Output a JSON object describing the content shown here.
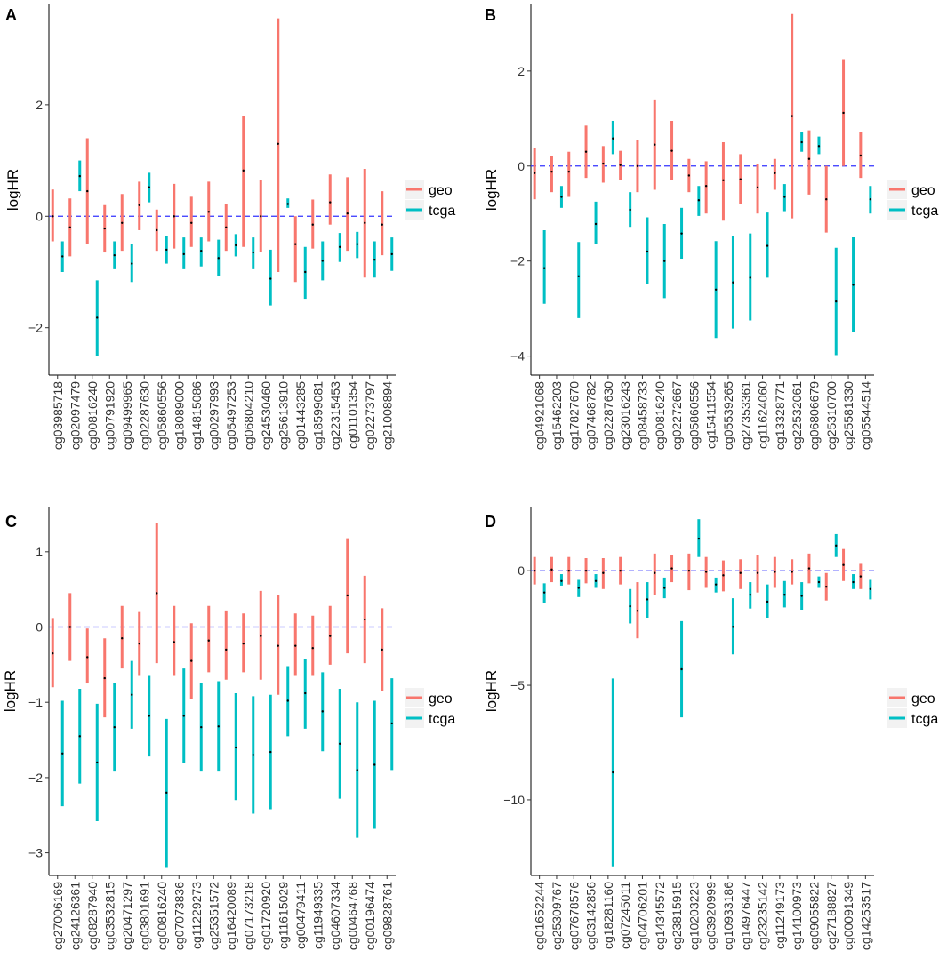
{
  "colors": {
    "geo": "#F8766D",
    "tcga": "#00BFC4",
    "reference": "#3333FF",
    "axis": "#000000"
  },
  "chart_data": [
    {
      "panel_label": "A",
      "type": "errorbar",
      "title": "",
      "xlabel": "",
      "ylabel": "logHR",
      "ylim": [
        -2.85,
        3.8
      ],
      "yticks": [
        -2,
        0,
        2
      ],
      "reference_line": 0,
      "legend": [
        "geo",
        "tcga"
      ],
      "legend_position": "right",
      "categories": [
        "cg03985718",
        "cg02097479",
        "cg00816240",
        "cg00791920",
        "cg09499965",
        "cg02287630",
        "cg05860556",
        "cg18089000",
        "cg14815086",
        "cg00297993",
        "cg05497253",
        "cg06804210",
        "cg24530460",
        "cg25613910",
        "cg01443285",
        "cg18599081",
        "cg22315453",
        "cg01101354",
        "cg02273797",
        "cg21008894"
      ],
      "series": [
        {
          "name": "geo",
          "low": [
            -0.45,
            -0.72,
            -0.5,
            -0.65,
            -0.62,
            -0.25,
            -0.62,
            -0.58,
            -0.55,
            -0.45,
            -0.62,
            -0.55,
            -0.65,
            -1.0,
            -1.18,
            -0.58,
            -0.15,
            -0.62,
            -1.1,
            -0.7
          ],
          "high": [
            0.48,
            0.32,
            1.4,
            0.2,
            0.4,
            0.62,
            0.12,
            0.58,
            0.35,
            0.62,
            0.22,
            1.8,
            0.65,
            3.55,
            0.0,
            0.3,
            0.75,
            0.7,
            0.85,
            0.45
          ],
          "est": [
            0.0,
            -0.2,
            0.45,
            -0.22,
            -0.12,
            0.2,
            -0.25,
            0.0,
            -0.12,
            0.08,
            -0.2,
            0.82,
            0.0,
            1.3,
            -0.5,
            -0.15,
            0.25,
            0.05,
            -0.12,
            -0.15
          ]
        },
        {
          "name": "tcga",
          "low": [
            -1.0,
            0.45,
            -2.5,
            -0.95,
            -1.18,
            0.25,
            -0.85,
            -0.95,
            -0.9,
            -1.08,
            -0.72,
            -0.95,
            -1.6,
            0.15,
            -1.48,
            -1.15,
            -0.82,
            -0.75,
            -1.1,
            -0.98
          ],
          "high": [
            -0.45,
            1.0,
            -1.15,
            -0.45,
            -0.5,
            0.78,
            -0.35,
            -0.38,
            -0.38,
            -0.42,
            -0.32,
            -0.38,
            -0.6,
            0.32,
            -0.55,
            -0.45,
            -0.3,
            -0.28,
            -0.45,
            -0.38
          ],
          "est": [
            -0.72,
            0.72,
            -1.82,
            -0.7,
            -0.85,
            0.52,
            -0.6,
            -0.68,
            -0.62,
            -0.75,
            -0.52,
            -0.65,
            -1.12,
            0.22,
            -1.0,
            -0.8,
            -0.55,
            -0.5,
            -0.78,
            -0.68
          ]
        }
      ]
    },
    {
      "panel_label": "B",
      "type": "errorbar",
      "title": "",
      "xlabel": "",
      "ylabel": "logHR",
      "ylim": [
        -4.4,
        3.4
      ],
      "yticks": [
        -4,
        -2,
        0,
        2
      ],
      "reference_line": 0,
      "legend": [
        "geo",
        "tcga"
      ],
      "legend_position": "right",
      "categories": [
        "cg04921068",
        "cg15462203",
        "cg17827670",
        "cg07468782",
        "cg02287630",
        "cg23016243",
        "cg08458733",
        "cg00816240",
        "cg02272667",
        "cg05860556",
        "cg15411554",
        "cg05539265",
        "cg27353361",
        "cg11624060",
        "cg13328771",
        "cg22532061",
        "cg06806679",
        "cg25310700",
        "cg25581330",
        "cg05544514"
      ],
      "series": [
        {
          "name": "geo",
          "low": [
            -0.7,
            -0.55,
            -0.65,
            -0.25,
            -0.35,
            -0.3,
            -0.55,
            -0.5,
            -0.3,
            -0.55,
            -1.0,
            -1.15,
            -0.8,
            -1.0,
            -0.5,
            -1.1,
            -0.6,
            -1.4,
            0.0,
            -0.25
          ],
          "high": [
            0.38,
            0.22,
            0.3,
            0.85,
            0.42,
            0.32,
            0.55,
            1.4,
            0.95,
            0.15,
            0.1,
            0.5,
            0.25,
            0.05,
            0.15,
            3.2,
            0.75,
            0.0,
            2.25,
            0.72
          ],
          "est": [
            -0.15,
            -0.12,
            -0.12,
            0.3,
            0.05,
            0.02,
            0.0,
            0.45,
            0.32,
            -0.2,
            -0.42,
            -0.3,
            -0.28,
            -0.45,
            -0.15,
            1.05,
            0.15,
            -0.7,
            1.12,
            0.22
          ]
        },
        {
          "name": "tcga",
          "low": [
            -2.9,
            -0.88,
            -3.2,
            -1.65,
            0.25,
            -1.28,
            -2.48,
            -2.78,
            -1.95,
            -1.05,
            -3.62,
            -3.42,
            -3.25,
            -2.35,
            -0.95,
            0.3,
            0.25,
            -3.98,
            -3.5,
            -1.0
          ],
          "high": [
            -1.35,
            -0.42,
            -1.6,
            -0.75,
            0.95,
            -0.55,
            -1.08,
            -1.22,
            -0.88,
            -0.42,
            -1.58,
            -1.48,
            -1.42,
            -0.98,
            -0.38,
            0.72,
            0.62,
            -1.72,
            -1.5,
            -0.42
          ],
          "est": [
            -2.15,
            -0.65,
            -2.32,
            -1.22,
            0.58,
            -0.92,
            -1.8,
            -2.0,
            -1.42,
            -0.72,
            -2.6,
            -2.45,
            -2.35,
            -1.68,
            -0.65,
            0.5,
            0.42,
            -2.85,
            -2.5,
            -0.7
          ]
        }
      ]
    },
    {
      "panel_label": "C",
      "type": "errorbar",
      "title": "",
      "xlabel": "",
      "ylabel": "logHR",
      "ylim": [
        -3.3,
        1.6
      ],
      "yticks": [
        -3,
        -2,
        -1,
        0,
        1
      ],
      "reference_line": 0,
      "legend": [
        "geo",
        "tcga"
      ],
      "legend_position": "right",
      "categories": [
        "cg27006169",
        "cg24126361",
        "cg08287940",
        "cg03532815",
        "cg20471297",
        "cg03801691",
        "cg00816240",
        "cg07073836",
        "cg11229273",
        "cg25351572",
        "cg16420089",
        "cg07173218",
        "cg01720920",
        "cg11615029",
        "cg00479411",
        "cg11949335",
        "cg04607334",
        "cg00464768",
        "cg00196474",
        "cg09828761"
      ],
      "series": [
        {
          "name": "geo",
          "low": [
            -0.8,
            -0.45,
            -0.75,
            -1.2,
            -0.55,
            -0.65,
            -0.48,
            -0.65,
            -0.95,
            -0.6,
            -0.7,
            -0.6,
            -0.7,
            -0.9,
            -0.65,
            -0.65,
            -0.5,
            -0.35,
            -0.48,
            -0.85
          ],
          "high": [
            0.12,
            0.45,
            -0.02,
            -0.15,
            0.28,
            0.2,
            1.38,
            0.28,
            0.05,
            0.28,
            0.22,
            0.18,
            0.48,
            0.42,
            0.18,
            0.15,
            0.28,
            1.18,
            0.68,
            0.25
          ],
          "est": [
            -0.35,
            0.0,
            -0.4,
            -0.68,
            -0.15,
            -0.22,
            0.45,
            -0.2,
            -0.45,
            -0.18,
            -0.3,
            -0.22,
            -0.12,
            -0.25,
            -0.25,
            -0.28,
            -0.12,
            0.42,
            0.1,
            -0.3
          ]
        },
        {
          "name": "tcga",
          "low": [
            -2.38,
            -2.08,
            -2.58,
            -1.92,
            -1.35,
            -1.72,
            -3.2,
            -1.8,
            -1.92,
            -1.92,
            -2.3,
            -2.48,
            -2.42,
            -1.45,
            -1.35,
            -1.65,
            -2.28,
            -2.8,
            -2.68,
            -1.9
          ],
          "high": [
            -0.98,
            -0.82,
            -1.02,
            -0.75,
            -0.45,
            -0.65,
            -1.22,
            -0.55,
            -0.75,
            -0.72,
            -0.88,
            -0.92,
            -0.9,
            -0.52,
            -0.42,
            -0.6,
            -0.82,
            -1.0,
            -0.98,
            -0.68
          ],
          "est": [
            -1.68,
            -1.45,
            -1.8,
            -1.33,
            -0.9,
            -1.18,
            -2.2,
            -1.18,
            -1.33,
            -1.32,
            -1.6,
            -1.7,
            -1.66,
            -0.98,
            -0.88,
            -1.12,
            -1.55,
            -1.9,
            -1.83,
            -1.28
          ]
        }
      ]
    },
    {
      "panel_label": "D",
      "type": "errorbar",
      "title": "",
      "xlabel": "",
      "ylabel": "logHR",
      "ylim": [
        -13.3,
        2.8
      ],
      "yticks": [
        -10,
        -5,
        0
      ],
      "reference_line": 0,
      "legend": [
        "geo",
        "tcga"
      ],
      "legend_position": "right",
      "categories": [
        "cg01652244",
        "cg25309767",
        "cg07678576",
        "cg03142856",
        "cg18281160",
        "cg07245011",
        "cg04706201",
        "cg14345572",
        "cg23815915",
        "cg10203223",
        "cg03920999",
        "cg10933186",
        "cg14976447",
        "cg23235142",
        "cg11249173",
        "cg14100973",
        "cg09055822",
        "cg27188827",
        "cg00091349",
        "cg14253517"
      ],
      "series": [
        {
          "name": "geo",
          "low": [
            -0.6,
            -0.5,
            -0.6,
            -0.55,
            -0.8,
            -0.6,
            -2.95,
            -1.05,
            -0.5,
            -0.85,
            -0.75,
            -0.9,
            -0.8,
            -0.95,
            -0.75,
            -0.6,
            -0.55,
            -1.3,
            -0.45,
            -0.8
          ],
          "high": [
            0.6,
            0.6,
            0.6,
            0.55,
            0.55,
            0.6,
            -0.5,
            0.75,
            0.7,
            0.75,
            0.6,
            0.45,
            0.5,
            0.7,
            0.6,
            0.5,
            0.75,
            -0.1,
            0.95,
            0.3
          ],
          "est": [
            0.0,
            0.05,
            0.0,
            0.0,
            -0.1,
            0.0,
            -1.75,
            -0.1,
            0.1,
            0.0,
            -0.05,
            -0.2,
            -0.1,
            -0.1,
            -0.05,
            -0.05,
            0.1,
            -0.7,
            0.25,
            -0.25
          ]
        },
        {
          "name": "tcga",
          "low": [
            -1.4,
            -0.65,
            -1.15,
            -0.75,
            -12.9,
            -2.3,
            -2.05,
            -1.2,
            -6.4,
            0.6,
            -0.95,
            -3.65,
            -1.65,
            -2.05,
            -1.6,
            -1.7,
            -0.75,
            0.6,
            -0.8,
            -1.25
          ],
          "high": [
            -0.55,
            -0.15,
            -0.4,
            -0.15,
            -4.7,
            -0.8,
            -0.5,
            -0.3,
            -2.2,
            2.25,
            -0.3,
            -1.2,
            -0.5,
            -0.6,
            -0.45,
            -0.5,
            -0.25,
            1.6,
            -0.15,
            -0.4
          ],
          "est": [
            -0.95,
            -0.45,
            -0.75,
            -0.45,
            -8.8,
            -1.55,
            -1.25,
            -0.75,
            -4.3,
            1.4,
            -0.6,
            -2.45,
            -1.05,
            -1.35,
            -1.05,
            -1.1,
            -0.5,
            1.1,
            -0.5,
            -0.8
          ]
        }
      ]
    }
  ]
}
